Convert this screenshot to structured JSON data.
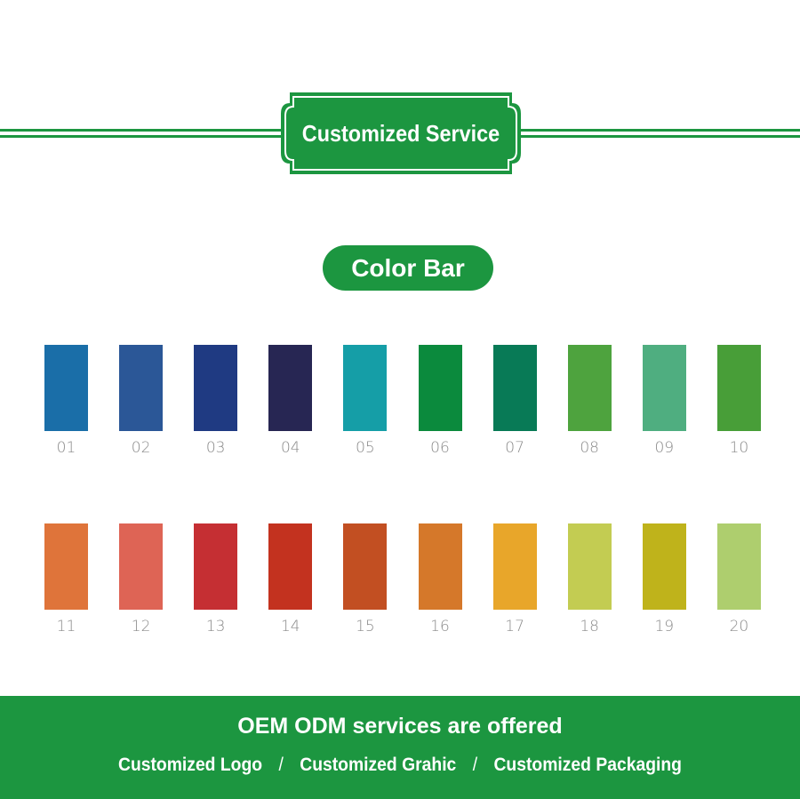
{
  "header": {
    "title": "Customized Service"
  },
  "section": {
    "title": "Color Bar"
  },
  "colors": [
    {
      "code": "01",
      "hex": "#1a6ea8"
    },
    {
      "code": "02",
      "hex": "#2b5797"
    },
    {
      "code": "03",
      "hex": "#1f3a82"
    },
    {
      "code": "04",
      "hex": "#272653"
    },
    {
      "code": "05",
      "hex": "#159ea7"
    },
    {
      "code": "06",
      "hex": "#0b8a3d"
    },
    {
      "code": "07",
      "hex": "#087a56"
    },
    {
      "code": "08",
      "hex": "#4ea33e"
    },
    {
      "code": "09",
      "hex": "#4fae80"
    },
    {
      "code": "10",
      "hex": "#489e38"
    },
    {
      "code": "11",
      "hex": "#df743a"
    },
    {
      "code": "12",
      "hex": "#de6455"
    },
    {
      "code": "13",
      "hex": "#c52f33"
    },
    {
      "code": "14",
      "hex": "#c3321f"
    },
    {
      "code": "15",
      "hex": "#c24f22"
    },
    {
      "code": "16",
      "hex": "#d5782a"
    },
    {
      "code": "17",
      "hex": "#e8a62a"
    },
    {
      "code": "18",
      "hex": "#c3cc52"
    },
    {
      "code": "19",
      "hex": "#bfb31b"
    },
    {
      "code": "20",
      "hex": "#aece6e"
    }
  ],
  "footer": {
    "title": "OEM ODM services are offered",
    "items": [
      "Customized Logo",
      "Customized Grahic",
      "Customized Packaging"
    ],
    "separator": "/"
  },
  "brand_color": "#1c9640"
}
